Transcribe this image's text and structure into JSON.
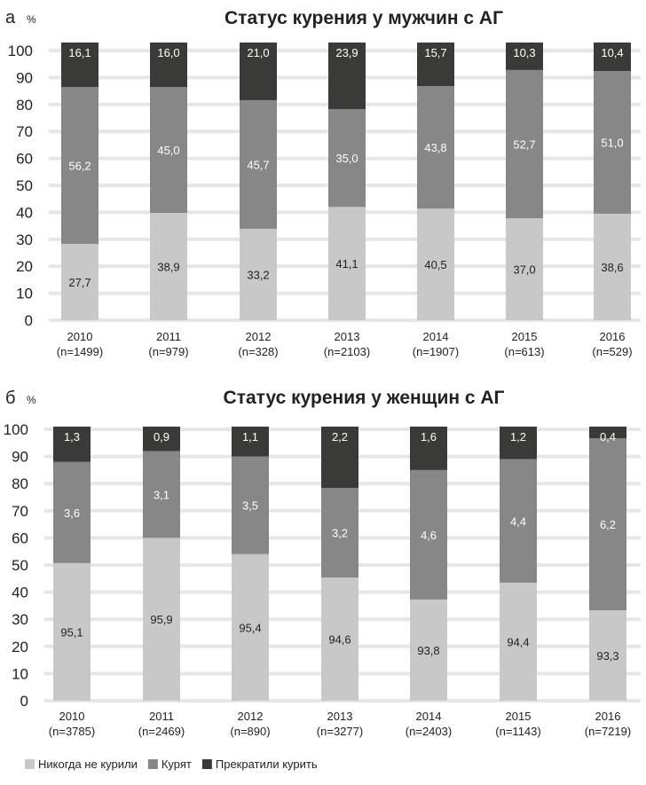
{
  "legend": [
    "Никогда не курили",
    "Курят",
    "Прекратили курить"
  ],
  "colors": {
    "never": "#c8c8c8",
    "smoking": "#878787",
    "quit": "#3a3a38",
    "grid": "#e6e6e6"
  },
  "chart_data": [
    {
      "type": "bar",
      "stacked": true,
      "panel": "а",
      "unit": "%",
      "title": "Статус курения у мужчин с АГ",
      "ylim": [
        0,
        100
      ],
      "yticks": [
        0,
        10,
        20,
        30,
        40,
        50,
        60,
        70,
        80,
        90,
        100
      ],
      "grid": true,
      "legend": "bottom-left",
      "categories": [
        "2010",
        "2011",
        "2012",
        "2013",
        "2014",
        "2015",
        "2016"
      ],
      "category_n": [
        "(n=1499)",
        "(n=979)",
        "(n=328)",
        "(n=2103)",
        "(n=1907)",
        "(n=613)",
        "(n=529)"
      ],
      "series": [
        {
          "name": "Никогда не курили",
          "values": [
            27.7,
            38.9,
            33.2,
            41.1,
            40.5,
            37.0,
            38.6
          ],
          "labels": [
            "27,7",
            "38,9",
            "33,2",
            "41,1",
            "40,5",
            "37,0",
            "38,6"
          ],
          "segment_tops": [
            28.3,
            39.8,
            33.9,
            42,
            41.4,
            37.8,
            39.5
          ]
        },
        {
          "name": "Курят",
          "values": [
            56.2,
            45.0,
            45.7,
            35.0,
            43.8,
            52.7,
            51.0
          ],
          "labels": [
            "56,2",
            "45,0",
            "45,7",
            "35,0",
            "43,8",
            "52,7",
            "51,0"
          ],
          "segment_tops": [
            86.5,
            86.5,
            81.6,
            78.3,
            86.8,
            92.8,
            92.4
          ]
        },
        {
          "name": "Прекратили курить",
          "values": [
            16.1,
            16.0,
            21.0,
            23.9,
            15.7,
            10.3,
            10.4
          ],
          "labels": [
            "16,1",
            "16,0",
            "21,0",
            "23,9",
            "15,7",
            "10,3",
            "10,4"
          ],
          "segment_tops": [
            103,
            103,
            103,
            103,
            103,
            103,
            103
          ]
        }
      ]
    },
    {
      "type": "bar",
      "stacked": true,
      "panel": "б",
      "unit": "%",
      "title": "Статус курения у женщин с АГ",
      "ylim": [
        0,
        100
      ],
      "yticks": [
        0,
        10,
        20,
        30,
        40,
        50,
        60,
        70,
        80,
        90,
        100
      ],
      "grid": true,
      "categories": [
        "2010",
        "2011",
        "2012",
        "2013",
        "2014",
        "2015",
        "2016"
      ],
      "category_n": [
        "(n=3785)",
        "(n=2469)",
        "(n=890)",
        "(n=3277)",
        "(n=2403)",
        "(n=1143)",
        "(n=7219)"
      ],
      "series": [
        {
          "name": "Никогда не курили",
          "values": [
            95.1,
            95.9,
            95.4,
            94.6,
            93.8,
            94.4,
            93.3
          ],
          "labels": [
            "95,1",
            "95,9",
            "95,4",
            "94,6",
            "93,8",
            "94,4",
            "93,3"
          ],
          "segment_tops": [
            50.7,
            60,
            54,
            45.4,
            37.3,
            43.5,
            33.3
          ]
        },
        {
          "name": "Курят",
          "values": [
            3.6,
            3.1,
            3.5,
            3.2,
            4.6,
            4.4,
            6.2
          ],
          "labels": [
            "3,6",
            "3,1",
            "3,5",
            "3,2",
            "4,6",
            "4,4",
            "6,2"
          ],
          "segment_tops": [
            88,
            92,
            90,
            78.4,
            85,
            89,
            96.7
          ]
        },
        {
          "name": "Прекратили курить",
          "values": [
            1.3,
            0.9,
            1.1,
            2.2,
            1.6,
            1.2,
            0.4
          ],
          "labels": [
            "1,3",
            "0,9",
            "1,1",
            "2,2",
            "1,6",
            "1,2",
            "0,4"
          ],
          "segment_tops": [
            101,
            101,
            101,
            101,
            101,
            101,
            101
          ]
        }
      ]
    }
  ]
}
